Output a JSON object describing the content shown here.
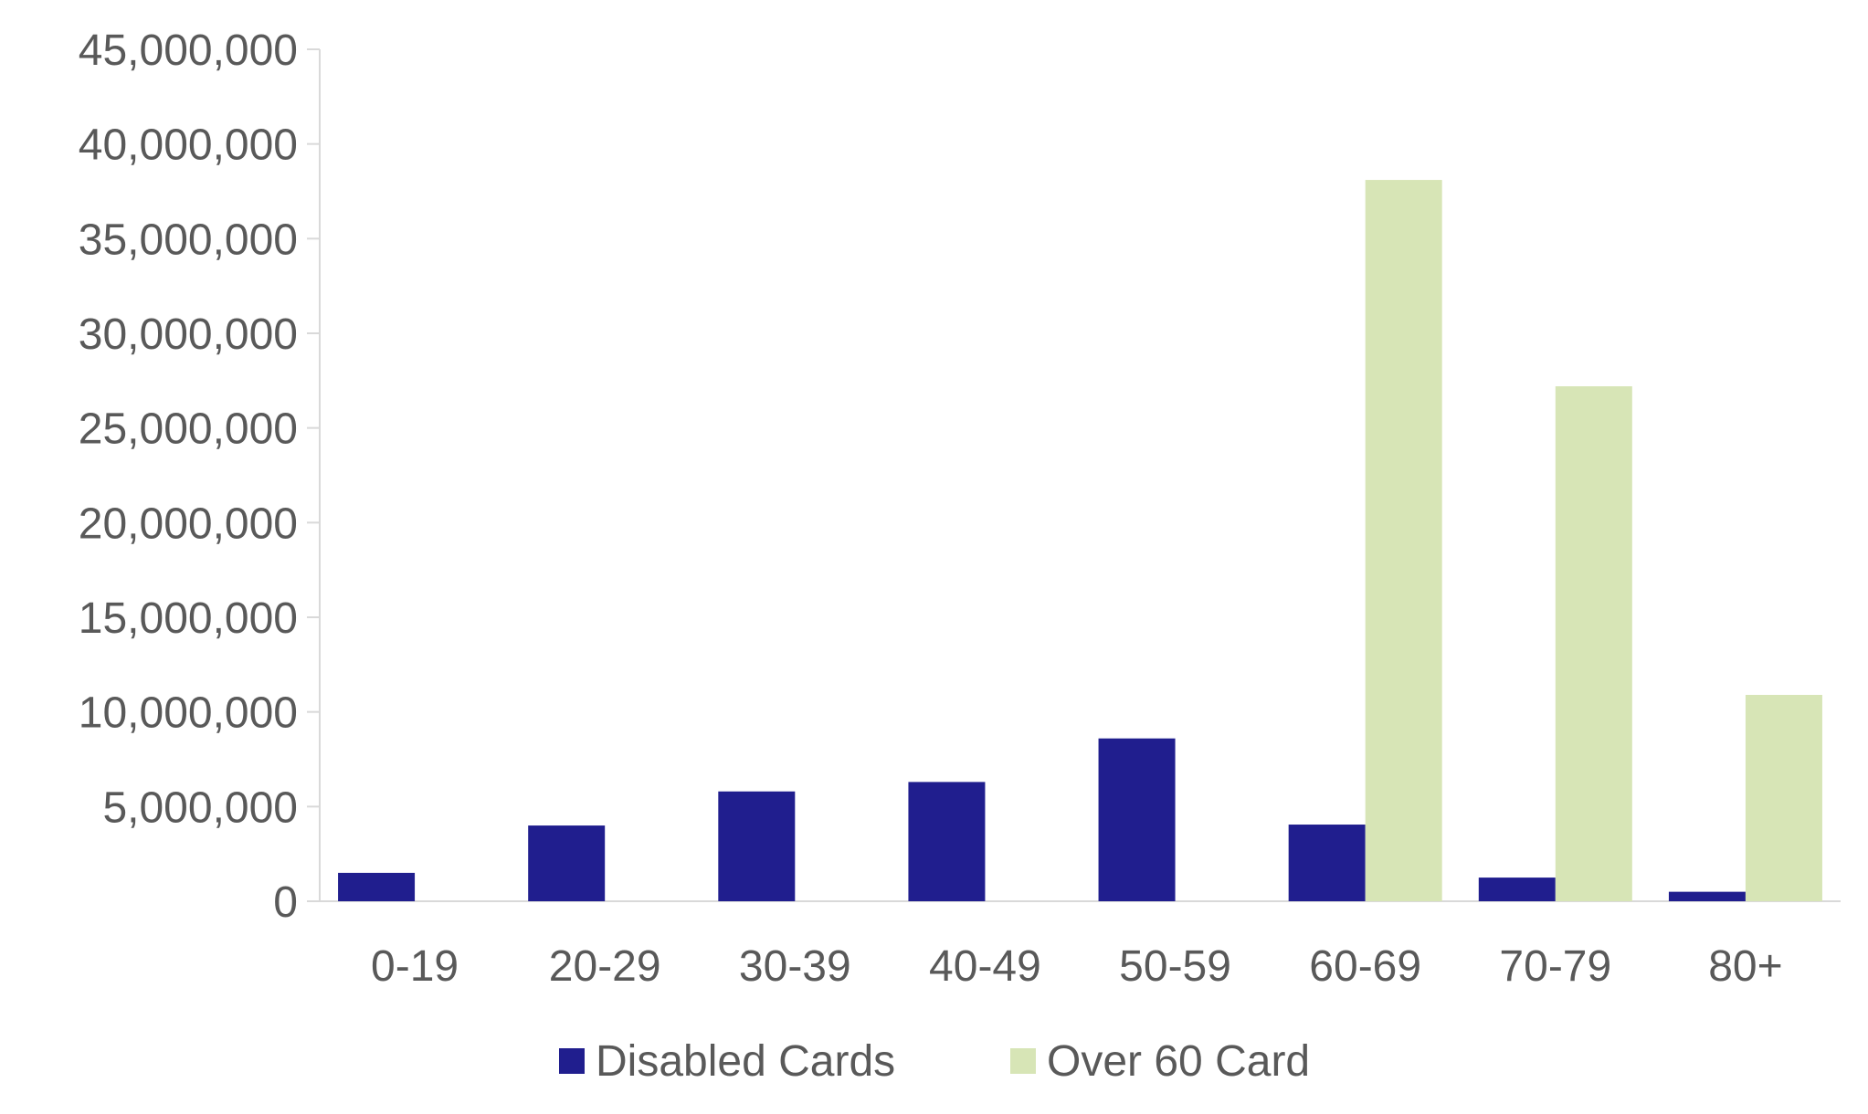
{
  "chart_data": {
    "type": "bar",
    "categories": [
      "0-19",
      "20-29",
      "30-39",
      "40-49",
      "50-59",
      "60-69",
      "70-79",
      "80+"
    ],
    "series": [
      {
        "name": "Disabled Cards",
        "color": "#201E8E",
        "values": [
          1500000,
          4000000,
          5800000,
          6300000,
          8600000,
          4050000,
          1250000,
          500000
        ]
      },
      {
        "name": "Over 60 Card",
        "color": "#D7E5B6",
        "values": [
          0,
          0,
          0,
          0,
          0,
          38100000,
          27200000,
          10900000
        ]
      }
    ],
    "yticks": [
      "0",
      "5,000,000",
      "10,000,000",
      "15,000,000",
      "20,000,000",
      "25,000,000",
      "30,000,000",
      "35,000,000",
      "40,000,000",
      "45,000,000"
    ],
    "ylim": [
      0,
      45000000
    ],
    "title": "",
    "xlabel": "",
    "ylabel": "",
    "grid": false,
    "legend_position": "bottom"
  }
}
